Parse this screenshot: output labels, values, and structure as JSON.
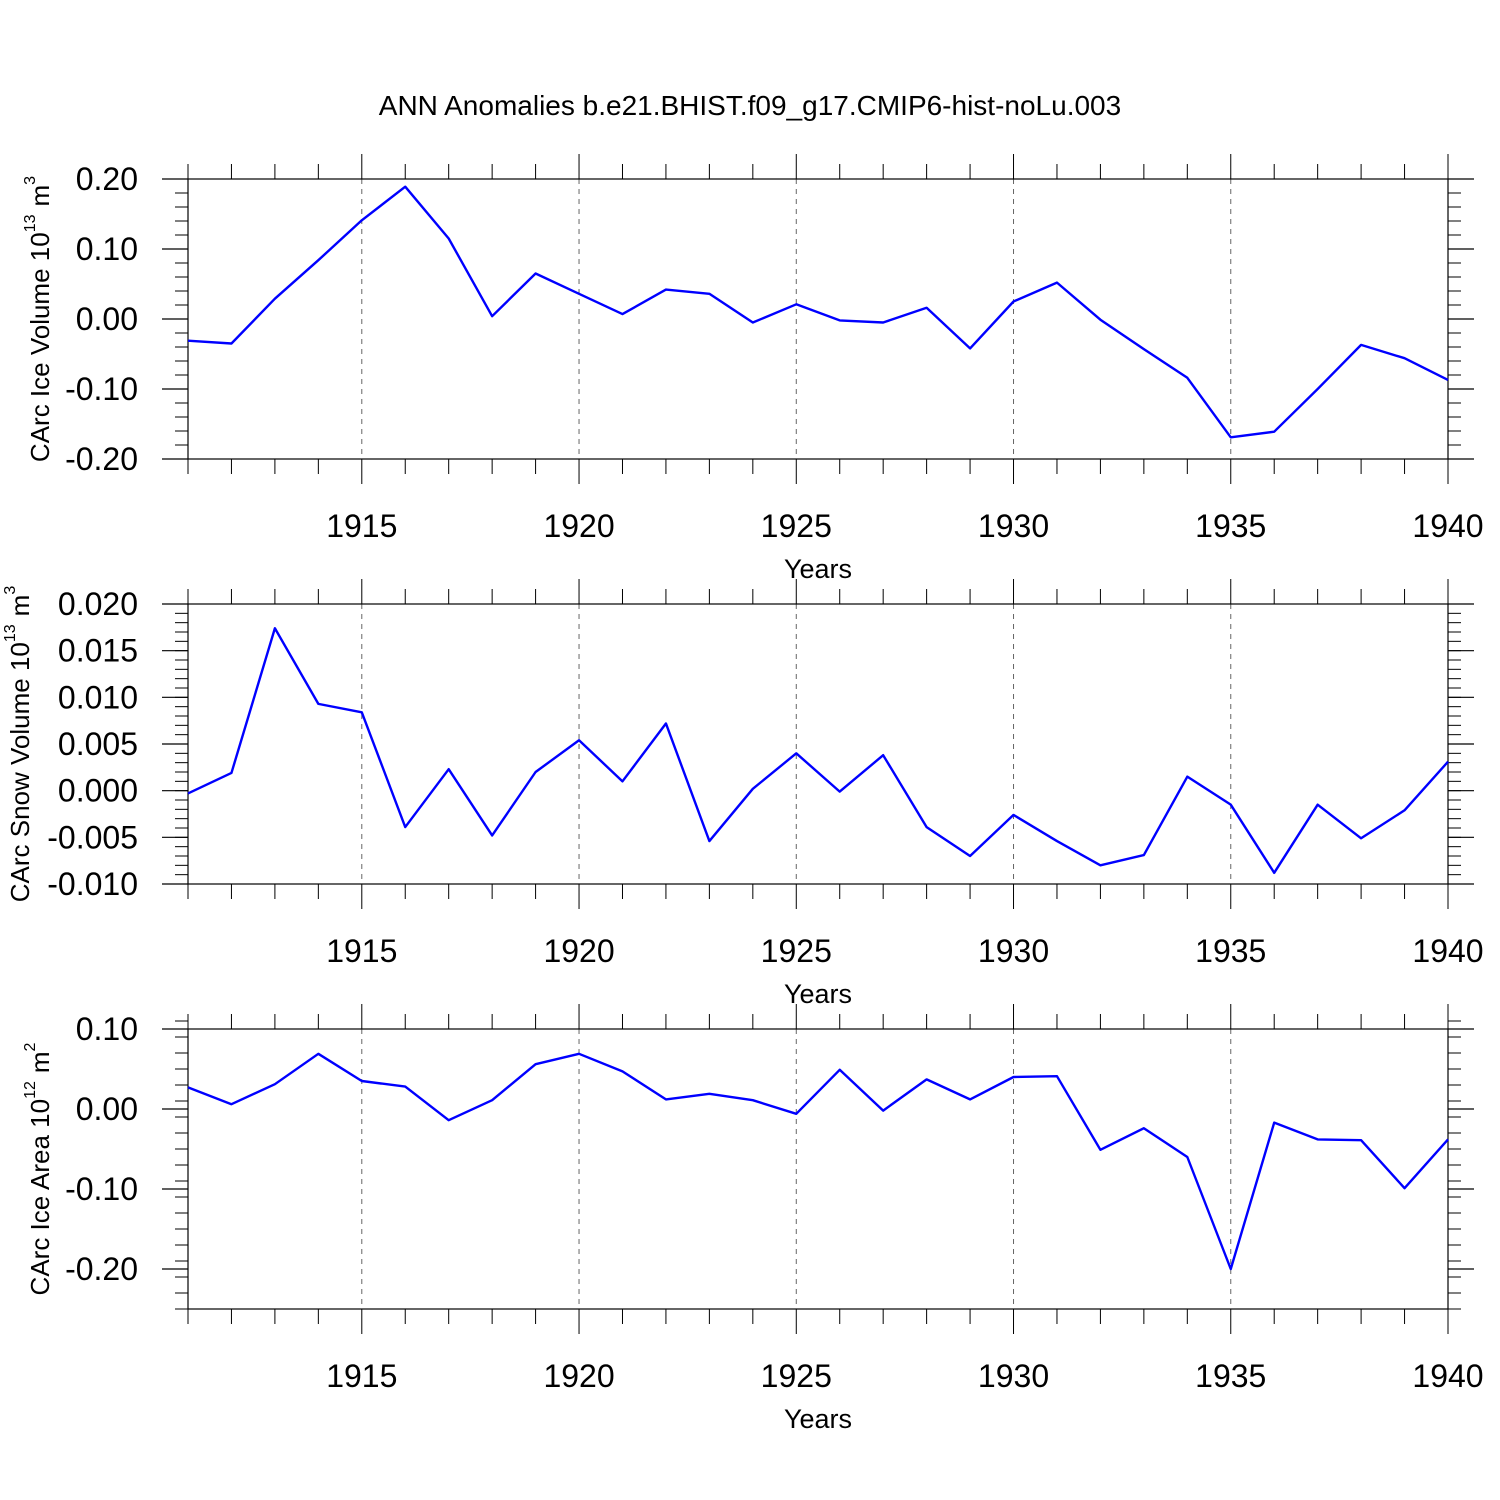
{
  "title": "ANN Anomalies b.e21.BHIST.f09_g17.CMIP6-hist-noLu.003",
  "colors": {
    "line": "#0000ff",
    "axis": "#000000",
    "grid": "#666666"
  },
  "chart_data": [
    {
      "type": "line",
      "name": "ice-volume",
      "ylabel_main": "CArc Ice Volume 10",
      "ylabel_exp": "13",
      "ylabel_unit": "m",
      "ylabel_unit_exp": "3",
      "xlabel": "Years",
      "xlim": [
        1911,
        1940
      ],
      "ylim": [
        -0.2,
        0.2
      ],
      "y_ticks": [
        0.2,
        0.1,
        0.0,
        -0.1,
        -0.2
      ],
      "y_tick_labels": [
        "0.20",
        "0.10",
        "0.00",
        "-0.10",
        "-0.20"
      ],
      "y_minor_step": 0.02,
      "x_ticks": [
        1915,
        1920,
        1925,
        1930,
        1935,
        1940
      ],
      "x_tick_labels": [
        "1915",
        "1920",
        "1925",
        "1930",
        "1935",
        "1940"
      ],
      "x": [
        1911,
        1912,
        1913,
        1914,
        1915,
        1916,
        1917,
        1918,
        1919,
        1920,
        1921,
        1922,
        1923,
        1924,
        1925,
        1926,
        1927,
        1928,
        1929,
        1930,
        1931,
        1932,
        1933,
        1934,
        1935,
        1936,
        1937,
        1938,
        1939,
        1940
      ],
      "series": [
        {
          "name": "CArc Ice Volume",
          "values": [
            -0.031,
            -0.035,
            0.029,
            0.084,
            0.141,
            0.189,
            0.115,
            0.004,
            0.065,
            0.036,
            0.007,
            0.042,
            0.036,
            -0.005,
            0.021,
            -0.002,
            -0.005,
            0.016,
            -0.042,
            0.025,
            0.052,
            -0.001,
            -0.043,
            -0.084,
            -0.169,
            -0.161,
            -0.1,
            -0.037,
            -0.056,
            -0.087
          ]
        }
      ]
    },
    {
      "type": "line",
      "name": "snow-volume",
      "ylabel_main": "CArc Snow Volume 10",
      "ylabel_exp": "13",
      "ylabel_unit": "m",
      "ylabel_unit_exp": "3",
      "xlabel": "Years",
      "xlim": [
        1911,
        1940
      ],
      "ylim": [
        -0.01,
        0.02
      ],
      "y_ticks": [
        0.02,
        0.015,
        0.01,
        0.005,
        0.0,
        -0.005,
        -0.01
      ],
      "y_tick_labels": [
        "0.020",
        "0.015",
        "0.010",
        "0.005",
        "0.000",
        "-0.005",
        "-0.010"
      ],
      "y_minor_step": 0.001,
      "x_ticks": [
        1915,
        1920,
        1925,
        1930,
        1935,
        1940
      ],
      "x_tick_labels": [
        "1915",
        "1920",
        "1925",
        "1930",
        "1935",
        "1940"
      ],
      "x": [
        1911,
        1912,
        1913,
        1914,
        1915,
        1916,
        1917,
        1918,
        1919,
        1920,
        1921,
        1922,
        1923,
        1924,
        1925,
        1926,
        1927,
        1928,
        1929,
        1930,
        1931,
        1932,
        1933,
        1934,
        1935,
        1936,
        1937,
        1938,
        1939,
        1940
      ],
      "series": [
        {
          "name": "CArc Snow Volume",
          "values": [
            -0.0003,
            0.0019,
            0.0174,
            0.0093,
            0.0084,
            -0.0039,
            0.0023,
            -0.0048,
            0.002,
            0.0054,
            0.001,
            0.0072,
            -0.0054,
            0.0002,
            0.004,
            -0.0001,
            0.0038,
            -0.0039,
            -0.007,
            -0.0026,
            -0.0054,
            -0.008,
            -0.0069,
            0.0015,
            -0.0015,
            -0.0088,
            -0.0015,
            -0.0051,
            -0.0021,
            0.0031
          ]
        }
      ]
    },
    {
      "type": "line",
      "name": "ice-area",
      "ylabel_main": "CArc Ice Area 10",
      "ylabel_exp": "12",
      "ylabel_unit": "m",
      "ylabel_unit_exp": "2",
      "xlabel": "Years",
      "xlim": [
        1911,
        1940
      ],
      "ylim": [
        -0.25,
        0.1
      ],
      "y_ticks": [
        0.1,
        0.0,
        -0.1,
        -0.2
      ],
      "y_tick_labels": [
        "0.10",
        "0.00",
        "-0.10",
        "-0.20"
      ],
      "y_minor_step": 0.02,
      "x_ticks": [
        1915,
        1920,
        1925,
        1930,
        1935,
        1940
      ],
      "x_tick_labels": [
        "1915",
        "1920",
        "1925",
        "1930",
        "1935",
        "1940"
      ],
      "x": [
        1911,
        1912,
        1913,
        1914,
        1915,
        1916,
        1917,
        1918,
        1919,
        1920,
        1921,
        1922,
        1923,
        1924,
        1925,
        1926,
        1927,
        1928,
        1929,
        1930,
        1931,
        1932,
        1933,
        1934,
        1935,
        1936,
        1937,
        1938,
        1939,
        1940
      ],
      "series": [
        {
          "name": "CArc Ice Area",
          "values": [
            0.027,
            0.006,
            0.031,
            0.069,
            0.035,
            0.028,
            -0.014,
            0.011,
            0.056,
            0.069,
            0.047,
            0.012,
            0.019,
            0.011,
            -0.006,
            0.049,
            -0.002,
            0.037,
            0.012,
            0.04,
            0.041,
            -0.051,
            -0.024,
            -0.06,
            -0.2,
            -0.017,
            -0.038,
            -0.039,
            -0.099,
            -0.038
          ]
        }
      ]
    }
  ]
}
